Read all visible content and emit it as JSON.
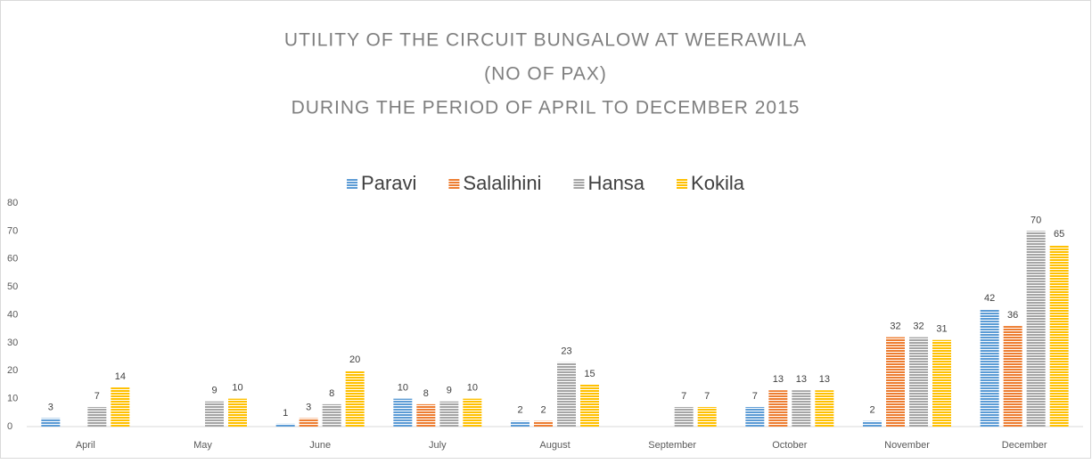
{
  "chart_data": {
    "type": "bar",
    "title": [
      "UTILITY OF THE CIRCUIT BUNGALOW AT WEERAWILA",
      "(NO OF PAX)",
      "DURING THE PERIOD OF APRIL TO DECEMBER 2015"
    ],
    "categories": [
      "April",
      "May",
      "June",
      "July",
      "August",
      "September",
      "October",
      "November",
      "December"
    ],
    "series": [
      {
        "name": "Paravi",
        "color": "#5b9bd5",
        "values": [
          3,
          null,
          1,
          10,
          2,
          null,
          7,
          2,
          42
        ]
      },
      {
        "name": "Salalihini",
        "color": "#ed7d31",
        "values": [
          null,
          null,
          3,
          8,
          2,
          null,
          13,
          32,
          36
        ]
      },
      {
        "name": "Hansa",
        "color": "#a5a5a5",
        "values": [
          7,
          9,
          8,
          9,
          23,
          7,
          13,
          32,
          70
        ]
      },
      {
        "name": "Kokila",
        "color": "#ffc000",
        "values": [
          14,
          10,
          20,
          10,
          15,
          7,
          13,
          31,
          65
        ]
      }
    ],
    "ylim": [
      0,
      80
    ],
    "yticks": [
      0,
      10,
      20,
      30,
      40,
      50,
      60,
      70,
      80
    ],
    "grid": false,
    "legend": "top"
  }
}
